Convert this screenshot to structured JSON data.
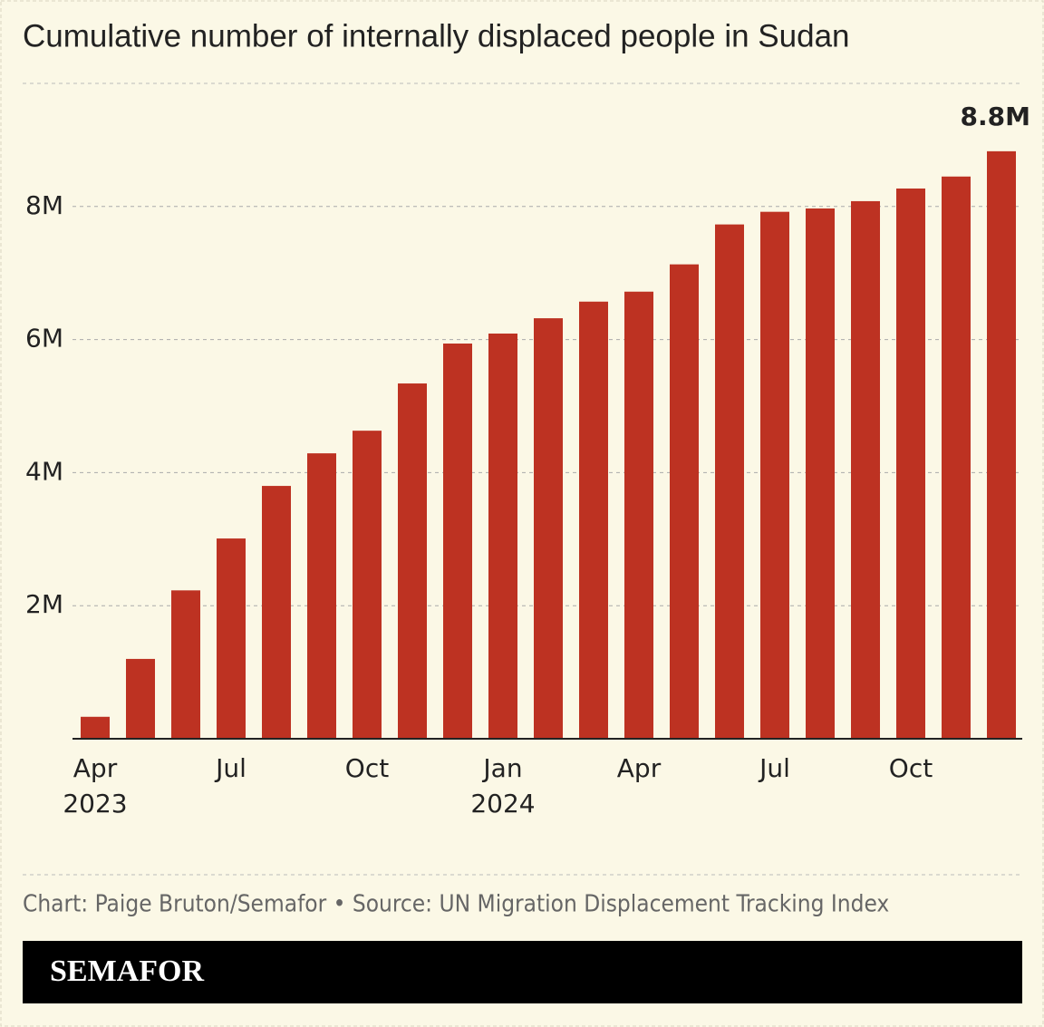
{
  "chart_data": {
    "type": "bar",
    "title": "Cumulative number of internally displaced people in Sudan",
    "categories": [
      "Apr",
      null,
      null,
      "Jul",
      null,
      null,
      "Oct",
      null,
      null,
      "Jan",
      null,
      null,
      "Apr",
      null,
      null,
      "Jul",
      null,
      null,
      "Oct",
      null,
      null
    ],
    "category_years": [
      "2023",
      null,
      null,
      null,
      null,
      null,
      null,
      null,
      null,
      "2024",
      null,
      null,
      null,
      null,
      null,
      null,
      null,
      null,
      null,
      null,
      null
    ],
    "values": [
      0.33,
      1.2,
      2.23,
      3.01,
      3.8,
      4.29,
      4.63,
      5.34,
      5.94,
      6.09,
      6.32,
      6.57,
      6.72,
      7.13,
      7.73,
      7.92,
      7.97,
      8.08,
      8.27,
      8.45,
      8.83
    ],
    "value_labels": [
      null,
      null,
      null,
      null,
      null,
      null,
      null,
      null,
      null,
      null,
      null,
      null,
      null,
      null,
      null,
      null,
      null,
      null,
      null,
      null,
      "8.8M"
    ],
    "color": "#bd3222",
    "ylim": [
      0,
      9.85
    ],
    "yticks": [
      {
        "value": 2,
        "label": "2M"
      },
      {
        "value": 4,
        "label": "4M"
      },
      {
        "value": 6,
        "label": "6M"
      },
      {
        "value": 8,
        "label": "8M"
      }
    ],
    "grid": true,
    "source": "Chart: Paige Bruton/Semafor • Source: UN Migration Displacement Tracking Index",
    "brand": "SEMAFOR"
  }
}
